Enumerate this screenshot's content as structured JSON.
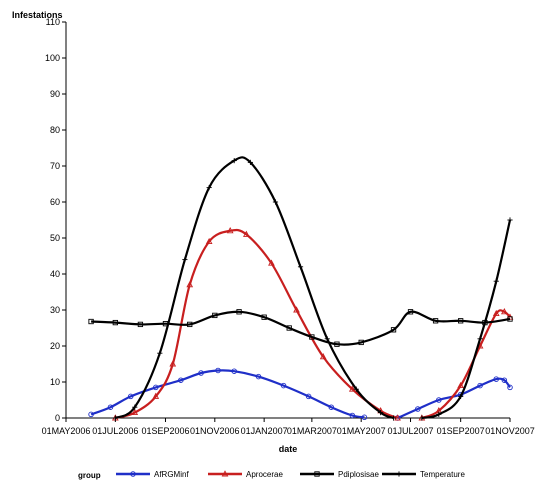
{
  "chart_data": {
    "type": "line",
    "ylabel": "Infestations",
    "xlabel": "date",
    "ylim": [
      0,
      110
    ],
    "yticks": [
      0,
      10,
      20,
      30,
      40,
      50,
      60,
      70,
      80,
      90,
      100,
      110
    ],
    "xlim": [
      "2006-05-01",
      "2007-11-01"
    ],
    "xticks": [
      {
        "date": "2006-05-01",
        "label": "01MAY2006"
      },
      {
        "date": "2006-07-01",
        "label": "01JUL2006"
      },
      {
        "date": "2006-09-01",
        "label": "01SEP2006"
      },
      {
        "date": "2006-11-01",
        "label": "01NOV2006"
      },
      {
        "date": "2007-01-01",
        "label": "01JAN2007"
      },
      {
        "date": "2007-03-01",
        "label": "01MAR2007"
      },
      {
        "date": "2007-05-01",
        "label": "01MAY2007"
      },
      {
        "date": "2007-07-01",
        "label": "01JUL2007"
      },
      {
        "date": "2007-09-01",
        "label": "01SEP2007"
      },
      {
        "date": "2007-11-01",
        "label": "01NOV2007"
      }
    ],
    "legend_title": "group",
    "legend_position": "bottom",
    "series": [
      {
        "name": "AfRGMinf",
        "color": "#1f2fc8",
        "marker": "circle",
        "points": [
          {
            "x": "2006-06-01",
            "y": 1
          },
          {
            "x": "2006-06-25",
            "y": 3
          },
          {
            "x": "2006-07-20",
            "y": 6
          },
          {
            "x": "2006-08-20",
            "y": 8.5
          },
          {
            "x": "2006-09-20",
            "y": 10.5
          },
          {
            "x": "2006-10-15",
            "y": 12.5
          },
          {
            "x": "2006-11-05",
            "y": 13.2
          },
          {
            "x": "2006-11-25",
            "y": 13
          },
          {
            "x": "2006-12-25",
            "y": 11.5
          },
          {
            "x": "2007-01-25",
            "y": 9
          },
          {
            "x": "2007-02-25",
            "y": 6
          },
          {
            "x": "2007-03-25",
            "y": 3
          },
          {
            "x": "2007-04-20",
            "y": 0.7
          },
          {
            "x": "2007-05-05",
            "y": 0.2
          }
        ],
        "segment2": [
          {
            "x": "2007-06-15",
            "y": 0
          },
          {
            "x": "2007-07-10",
            "y": 2.5
          },
          {
            "x": "2007-08-05",
            "y": 5
          },
          {
            "x": "2007-09-01",
            "y": 6.5
          },
          {
            "x": "2007-09-25",
            "y": 9
          },
          {
            "x": "2007-10-15",
            "y": 10.8
          },
          {
            "x": "2007-10-25",
            "y": 10.5
          },
          {
            "x": "2007-11-01",
            "y": 8.5
          }
        ]
      },
      {
        "name": "Aprocerae",
        "color": "#c81f1f",
        "marker": "triangle",
        "points": [
          {
            "x": "2006-07-01",
            "y": 0
          },
          {
            "x": "2006-07-25",
            "y": 1.5
          },
          {
            "x": "2006-08-20",
            "y": 6
          },
          {
            "x": "2006-09-10",
            "y": 15
          },
          {
            "x": "2006-10-01",
            "y": 37
          },
          {
            "x": "2006-10-25",
            "y": 49
          },
          {
            "x": "2006-11-20",
            "y": 52
          },
          {
            "x": "2006-12-10",
            "y": 51
          },
          {
            "x": "2007-01-10",
            "y": 43
          },
          {
            "x": "2007-02-10",
            "y": 30
          },
          {
            "x": "2007-03-15",
            "y": 17
          },
          {
            "x": "2007-04-20",
            "y": 8
          },
          {
            "x": "2007-05-25",
            "y": 2
          },
          {
            "x": "2007-06-15",
            "y": 0
          }
        ],
        "segment2": [
          {
            "x": "2007-07-15",
            "y": 0
          },
          {
            "x": "2007-08-05",
            "y": 2
          },
          {
            "x": "2007-09-01",
            "y": 9
          },
          {
            "x": "2007-09-25",
            "y": 20
          },
          {
            "x": "2007-10-15",
            "y": 29
          },
          {
            "x": "2007-10-25",
            "y": 29.5
          },
          {
            "x": "2007-11-01",
            "y": 28
          }
        ]
      },
      {
        "name": "Pdiplosisae",
        "color": "#000000",
        "marker": "square",
        "points": [
          {
            "x": "2006-06-01",
            "y": 26.8
          },
          {
            "x": "2006-07-01",
            "y": 26.5
          },
          {
            "x": "2006-08-01",
            "y": 26
          },
          {
            "x": "2006-09-01",
            "y": 26.2
          },
          {
            "x": "2006-10-01",
            "y": 26
          },
          {
            "x": "2006-11-01",
            "y": 28.5
          },
          {
            "x": "2006-12-01",
            "y": 29.5
          },
          {
            "x": "2007-01-01",
            "y": 28
          },
          {
            "x": "2007-02-01",
            "y": 25
          },
          {
            "x": "2007-03-01",
            "y": 22.5
          },
          {
            "x": "2007-04-01",
            "y": 20.5
          },
          {
            "x": "2007-05-01",
            "y": 21
          },
          {
            "x": "2007-06-10",
            "y": 24.5
          },
          {
            "x": "2007-07-01",
            "y": 29.5
          },
          {
            "x": "2007-08-01",
            "y": 27
          },
          {
            "x": "2007-09-01",
            "y": 27
          },
          {
            "x": "2007-10-01",
            "y": 26.5
          },
          {
            "x": "2007-11-01",
            "y": 27.5
          }
        ]
      },
      {
        "name": "Temperature",
        "color": "#000000",
        "marker": "plus",
        "points": [
          {
            "x": "2006-07-01",
            "y": 0
          },
          {
            "x": "2006-07-25",
            "y": 3
          },
          {
            "x": "2006-08-25",
            "y": 18
          },
          {
            "x": "2006-09-25",
            "y": 44
          },
          {
            "x": "2006-10-25",
            "y": 64
          },
          {
            "x": "2006-11-25",
            "y": 71.5
          },
          {
            "x": "2006-12-15",
            "y": 71
          },
          {
            "x": "2007-01-15",
            "y": 60
          },
          {
            "x": "2007-02-15",
            "y": 42
          },
          {
            "x": "2007-03-20",
            "y": 22
          },
          {
            "x": "2007-04-25",
            "y": 8
          },
          {
            "x": "2007-05-25",
            "y": 1.5
          },
          {
            "x": "2007-06-10",
            "y": 0
          }
        ],
        "segment2": [
          {
            "x": "2007-07-15",
            "y": 0
          },
          {
            "x": "2007-08-05",
            "y": 1
          },
          {
            "x": "2007-09-01",
            "y": 6
          },
          {
            "x": "2007-09-25",
            "y": 22
          },
          {
            "x": "2007-10-15",
            "y": 38
          },
          {
            "x": "2007-11-01",
            "y": 55
          }
        ]
      }
    ]
  }
}
